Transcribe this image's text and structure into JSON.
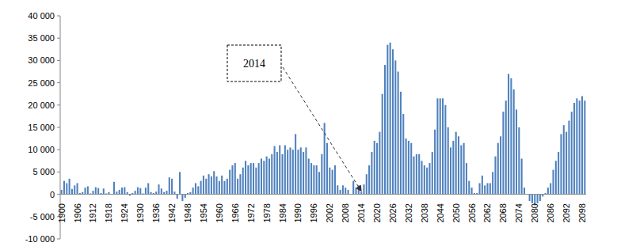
{
  "chart_data": {
    "type": "bar",
    "categories": [
      "1900",
      null,
      null,
      null,
      null,
      null,
      "1906",
      null,
      null,
      null,
      null,
      null,
      "1912",
      null,
      null,
      null,
      null,
      null,
      "1918",
      null,
      null,
      null,
      null,
      null,
      "1924",
      null,
      null,
      null,
      null,
      null,
      "1930",
      null,
      null,
      null,
      null,
      null,
      "1936",
      null,
      null,
      null,
      null,
      null,
      "1942",
      null,
      null,
      null,
      null,
      null,
      "1948",
      null,
      null,
      null,
      null,
      null,
      "1954",
      null,
      null,
      null,
      null,
      null,
      "1960",
      null,
      null,
      null,
      null,
      null,
      "1966",
      null,
      null,
      null,
      null,
      null,
      "1972",
      null,
      null,
      null,
      null,
      null,
      "1978",
      null,
      null,
      null,
      null,
      null,
      "1984",
      null,
      null,
      null,
      null,
      null,
      "1990",
      null,
      null,
      null,
      null,
      null,
      "1996",
      null,
      null,
      null,
      null,
      null,
      "2002",
      null,
      null,
      null,
      null,
      null,
      "2008",
      null,
      null,
      null,
      null,
      null,
      "2014",
      null,
      null,
      null,
      null,
      null,
      "2020",
      null,
      null,
      null,
      null,
      null,
      "2026",
      null,
      null,
      null,
      null,
      null,
      "2032",
      null,
      null,
      null,
      null,
      null,
      "2038",
      null,
      null,
      null,
      null,
      null,
      "2044",
      null,
      null,
      null,
      null,
      null,
      "2050",
      null,
      null,
      null,
      null,
      null,
      "2056",
      null,
      null,
      null,
      null,
      null,
      "2062",
      null,
      null,
      null,
      null,
      null,
      "2068",
      null,
      null,
      null,
      null,
      null,
      "2074",
      null,
      null,
      null,
      null,
      null,
      "2080",
      null,
      null,
      null,
      null,
      null,
      "2086",
      null,
      null,
      null,
      null,
      null,
      "2092",
      null,
      null,
      null,
      null,
      null,
      "2098",
      null
    ],
    "values": [
      1000,
      3000,
      2500,
      3500,
      1200,
      2000,
      2500,
      300,
      500,
      1500,
      1800,
      200,
      800,
      1600,
      1400,
      300,
      1300,
      200,
      500,
      100,
      2800,
      600,
      1000,
      1500,
      1600,
      500,
      -300,
      300,
      800,
      1600,
      1400,
      200,
      1500,
      2500,
      500,
      300,
      600,
      2200,
      1300,
      500,
      800,
      3800,
      3500,
      600,
      -1000,
      5000,
      -1500,
      -800,
      300,
      500,
      1500,
      2500,
      1800,
      3000,
      4200,
      3500,
      4500,
      4000,
      5200,
      4000,
      3000,
      4200,
      3000,
      3500,
      5500,
      6500,
      7000,
      3500,
      4500,
      6000,
      7500,
      6500,
      7000,
      7000,
      6000,
      7000,
      8000,
      7500,
      8500,
      8000,
      9000,
      10800,
      9500,
      11000,
      9000,
      11000,
      10000,
      10500,
      10000,
      13500,
      10000,
      10500,
      9500,
      10500,
      8000,
      7000,
      6500,
      6500,
      5000,
      9000,
      16000,
      11500,
      6000,
      5500,
      6500,
      2000,
      1000,
      2000,
      1500,
      1000,
      0,
      3000,
      1500,
      2000,
      500,
      2200,
      4500,
      6500,
      9500,
      12000,
      11500,
      14000,
      22500,
      29000,
      33500,
      34000,
      32500,
      30000,
      27500,
      23000,
      18000,
      12500,
      12000,
      11500,
      8500,
      9000,
      9000,
      7500,
      6500,
      6000,
      7000,
      9500,
      14500,
      21500,
      21500,
      21500,
      20000,
      15000,
      10500,
      12000,
      14000,
      13000,
      11000,
      11500,
      7000,
      3000,
      1500,
      300,
      300,
      2500,
      4200,
      2000,
      2500,
      2500,
      5000,
      8500,
      11500,
      13000,
      18500,
      21000,
      27000,
      26000,
      23500,
      19000,
      15000,
      8000,
      1500,
      0,
      -1500,
      -2000,
      -2500,
      -2000,
      -1500,
      -500,
      300,
      1500,
      2500,
      5500,
      7500,
      9500,
      13500,
      15500,
      14000,
      16500,
      18500,
      20500,
      21500,
      21000,
      22000,
      21000
    ],
    "color": "#4f81bd",
    "ylim": [
      -10000,
      40000
    ],
    "yticks": [
      {
        "value": -10000,
        "label": "-10 000"
      },
      {
        "value": -5000,
        "label": "-5 000"
      },
      0,
      {
        "value": 5000,
        "label": "5 000"
      },
      {
        "value": 10000,
        "label": "10 000"
      },
      {
        "value": 15000,
        "label": "15 000"
      },
      {
        "value": 20000,
        "label": "20 000"
      },
      {
        "value": 25000,
        "label": "25 000"
      },
      {
        "value": 30000,
        "label": "30 000"
      },
      {
        "value": 35000,
        "label": "35 000"
      },
      {
        "value": 40000,
        "label": "40 000"
      }
    ],
    "grid": false,
    "annotations": [
      {
        "text": "2014"
      }
    ]
  }
}
